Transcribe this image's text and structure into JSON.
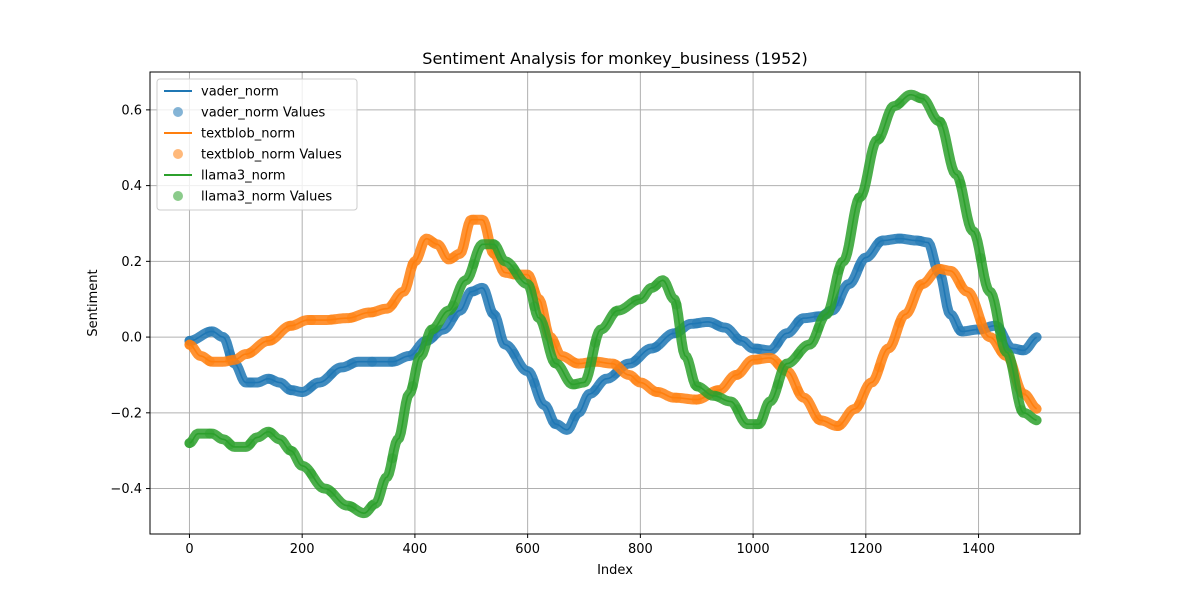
{
  "chart_data": {
    "type": "line",
    "title": "Sentiment Analysis for monkey_business (1952)",
    "xlabel": "Index",
    "ylabel": "Sentiment",
    "xlim": [
      -70,
      1580
    ],
    "ylim": [
      -0.52,
      0.7
    ],
    "xticks": [
      0,
      200,
      400,
      600,
      800,
      1000,
      1200,
      1400
    ],
    "yticks": [
      -0.4,
      -0.2,
      0.0,
      0.2,
      0.4,
      0.6
    ],
    "ytick_labels": [
      "−0.4",
      "−0.2",
      "0.0",
      "0.2",
      "0.4",
      "0.6"
    ],
    "grid": true,
    "legend_position": "top-left",
    "legend": [
      "vader_norm",
      "vader_norm Values",
      "textblob_norm",
      "textblob_norm Values",
      "llama3_norm",
      "llama3_norm Values"
    ],
    "series": [
      {
        "name": "vader_norm",
        "color": "#1f77b4",
        "x": [
          0,
          40,
          60,
          80,
          100,
          120,
          140,
          160,
          180,
          200,
          230,
          270,
          300,
          330,
          360,
          390,
          420,
          450,
          480,
          500,
          520,
          540,
          560,
          600,
          630,
          650,
          670,
          690,
          710,
          740,
          780,
          820,
          860,
          890,
          920,
          950,
          980,
          1000,
          1030,
          1060,
          1090,
          1120,
          1140,
          1170,
          1200,
          1230,
          1260,
          1290,
          1310,
          1330,
          1350,
          1370,
          1400,
          1430,
          1460,
          1480,
          1505
        ],
        "y": [
          -0.01,
          0.015,
          0.0,
          -0.07,
          -0.12,
          -0.12,
          -0.11,
          -0.12,
          -0.14,
          -0.145,
          -0.12,
          -0.08,
          -0.065,
          -0.065,
          -0.065,
          -0.05,
          -0.01,
          0.02,
          0.07,
          0.12,
          0.13,
          0.06,
          -0.02,
          -0.09,
          -0.18,
          -0.23,
          -0.245,
          -0.2,
          -0.15,
          -0.11,
          -0.07,
          -0.03,
          0.01,
          0.035,
          0.04,
          0.025,
          -0.01,
          -0.03,
          -0.035,
          0.01,
          0.05,
          0.055,
          0.07,
          0.14,
          0.21,
          0.255,
          0.26,
          0.255,
          0.25,
          0.17,
          0.06,
          0.015,
          0.02,
          0.03,
          -0.03,
          -0.035,
          0.0
        ]
      },
      {
        "name": "textblob_norm",
        "color": "#ff7f0e",
        "x": [
          0,
          20,
          40,
          60,
          80,
          100,
          140,
          180,
          210,
          240,
          280,
          320,
          350,
          380,
          400,
          420,
          440,
          460,
          480,
          500,
          520,
          540,
          560,
          580,
          600,
          620,
          640,
          660,
          690,
          720,
          750,
          780,
          800,
          830,
          860,
          900,
          940,
          970,
          1000,
          1030,
          1060,
          1090,
          1120,
          1150,
          1180,
          1210,
          1240,
          1270,
          1300,
          1330,
          1350,
          1380,
          1420,
          1450,
          1480,
          1505
        ],
        "y": [
          -0.02,
          -0.05,
          -0.065,
          -0.065,
          -0.06,
          -0.045,
          -0.01,
          0.03,
          0.045,
          0.045,
          0.05,
          0.065,
          0.075,
          0.12,
          0.2,
          0.26,
          0.245,
          0.205,
          0.22,
          0.31,
          0.31,
          0.22,
          0.17,
          0.165,
          0.165,
          0.1,
          0.0,
          -0.05,
          -0.07,
          -0.065,
          -0.07,
          -0.1,
          -0.12,
          -0.145,
          -0.16,
          -0.165,
          -0.14,
          -0.1,
          -0.06,
          -0.055,
          -0.09,
          -0.16,
          -0.22,
          -0.235,
          -0.19,
          -0.12,
          -0.03,
          0.06,
          0.14,
          0.18,
          0.175,
          0.12,
          0.0,
          -0.05,
          -0.15,
          -0.19
        ]
      },
      {
        "name": "llama3_norm",
        "color": "#2ca02c",
        "x": [
          0,
          15,
          40,
          60,
          80,
          100,
          120,
          140,
          160,
          180,
          200,
          240,
          280,
          310,
          330,
          350,
          370,
          390,
          410,
          430,
          460,
          490,
          520,
          540,
          560,
          600,
          620,
          650,
          680,
          700,
          730,
          760,
          800,
          820,
          840,
          860,
          880,
          900,
          930,
          960,
          990,
          1010,
          1030,
          1060,
          1100,
          1130,
          1160,
          1190,
          1220,
          1250,
          1280,
          1300,
          1330,
          1360,
          1390,
          1420,
          1450,
          1480,
          1505
        ],
        "y": [
          -0.28,
          -0.255,
          -0.255,
          -0.27,
          -0.29,
          -0.29,
          -0.265,
          -0.25,
          -0.27,
          -0.3,
          -0.34,
          -0.4,
          -0.445,
          -0.465,
          -0.44,
          -0.37,
          -0.27,
          -0.15,
          -0.05,
          0.02,
          0.07,
          0.15,
          0.245,
          0.245,
          0.2,
          0.14,
          0.05,
          -0.07,
          -0.125,
          -0.12,
          0.02,
          0.07,
          0.1,
          0.13,
          0.15,
          0.1,
          -0.05,
          -0.13,
          -0.155,
          -0.17,
          -0.23,
          -0.23,
          -0.17,
          -0.07,
          -0.02,
          0.06,
          0.2,
          0.37,
          0.52,
          0.61,
          0.64,
          0.63,
          0.57,
          0.43,
          0.28,
          0.12,
          -0.04,
          -0.2,
          -0.22
        ]
      }
    ]
  }
}
